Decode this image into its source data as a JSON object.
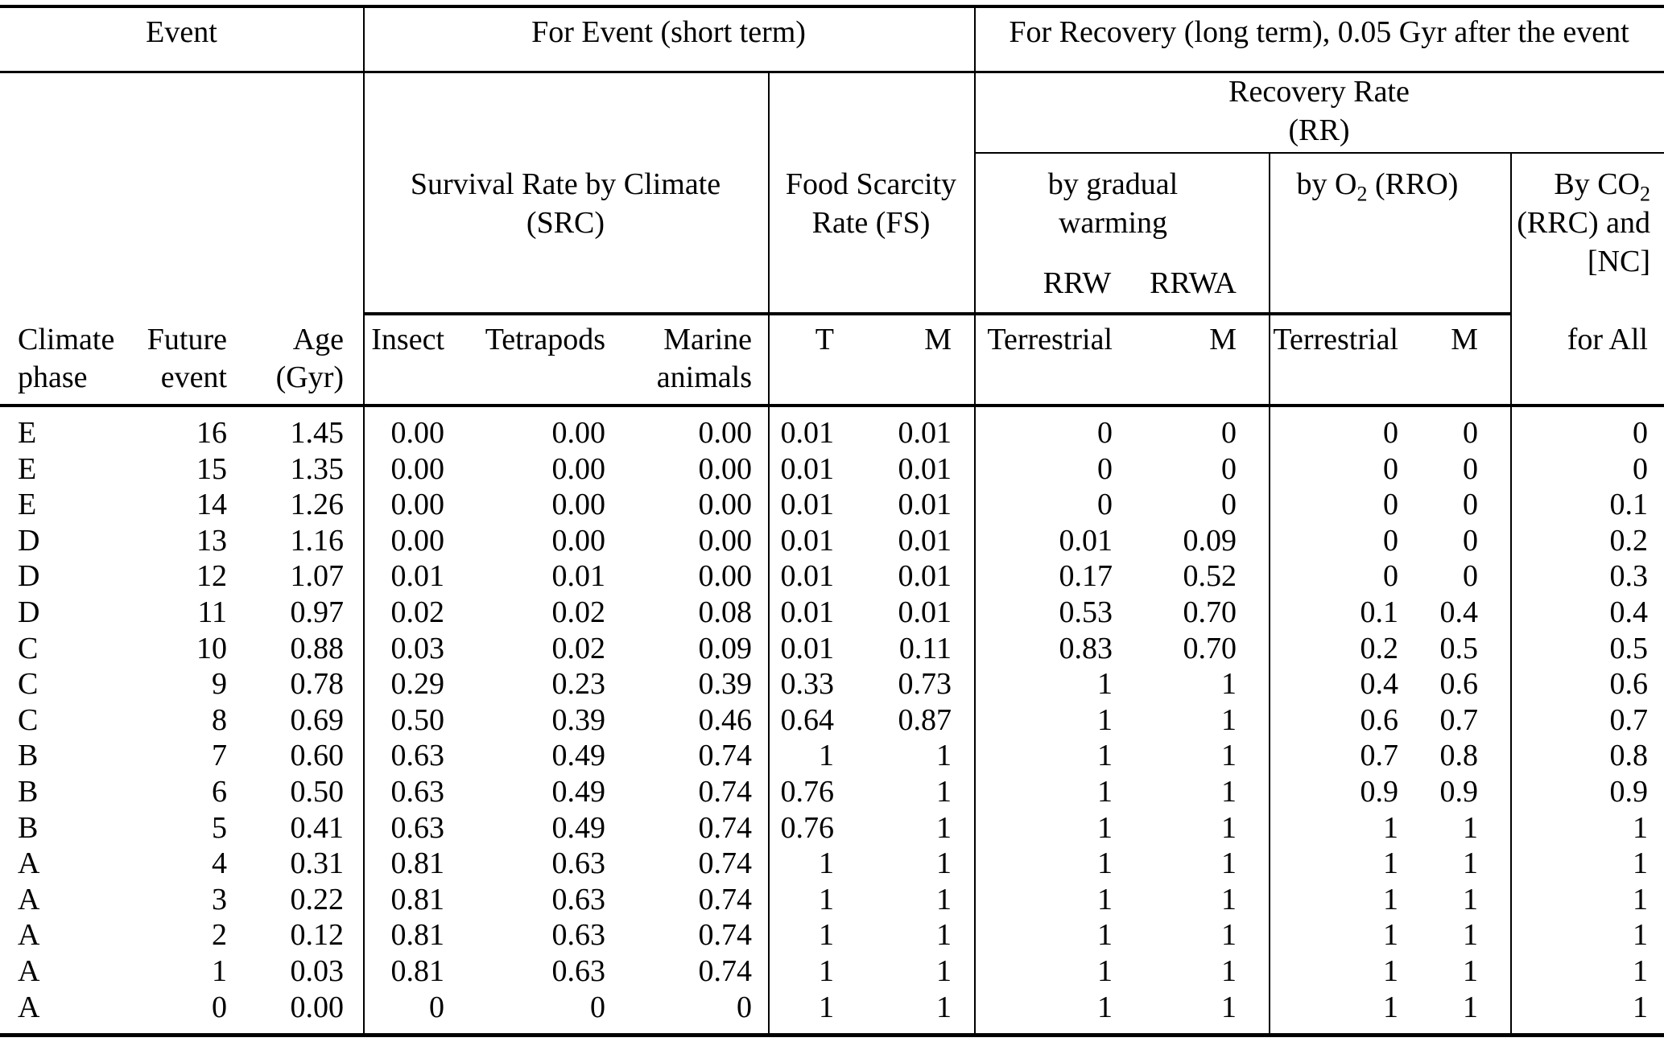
{
  "page": {
    "background": "#ffffff",
    "text_color": "#000000",
    "rule_color": "#000000"
  },
  "table": {
    "top_header": {
      "event_group": "Event",
      "for_event_group": "For Event (short term)",
      "for_recovery_group": "For Recovery (long term), 0.05 Gyr after the event"
    },
    "recovery_rate_header": {
      "line1": "Recovery Rate",
      "line2": "(RR)"
    },
    "group_headers": {
      "src_line1": "Survival Rate by Climate",
      "src_line2": "(SRC)",
      "fs_line1": "Food Scarcity",
      "fs_line2": "Rate (FS)",
      "warming_line1": "by gradual",
      "warming_line2": "warming",
      "warming_sub1": "RRW",
      "warming_sub2": "RRWA",
      "rro_pre": "by O",
      "rro_sub": "2",
      "rro_post": " (RRO)",
      "rrc_line1_pre": "By CO",
      "rrc_line1_sub": "2",
      "rrc_line2": "(RRC) and",
      "rrc_line3": "[NC]"
    },
    "columns": [
      {
        "line1": "Climate",
        "line2": "phase"
      },
      {
        "line1": "Future",
        "line2": "event"
      },
      {
        "line1": "Age",
        "line2": "(Gyr)"
      },
      {
        "line1": "Insect",
        "line2": ""
      },
      {
        "line1": "Tetrapods",
        "line2": ""
      },
      {
        "line1": "Marine",
        "line2": "animals"
      },
      {
        "line1": "T",
        "line2": ""
      },
      {
        "line1": "M",
        "line2": ""
      },
      {
        "line1": "Terrestrial",
        "line2": ""
      },
      {
        "line1": "M",
        "line2": ""
      },
      {
        "line1": "Terrestrial",
        "line2": ""
      },
      {
        "line1": "M",
        "line2": ""
      },
      {
        "line1": "for All",
        "line2": ""
      }
    ],
    "rows": [
      [
        "E",
        "16",
        "1.45",
        "0.00",
        "0.00",
        "0.00",
        "0.01",
        "0.01",
        "0",
        "0",
        "0",
        "0",
        "0"
      ],
      [
        "E",
        "15",
        "1.35",
        "0.00",
        "0.00",
        "0.00",
        "0.01",
        "0.01",
        "0",
        "0",
        "0",
        "0",
        "0"
      ],
      [
        "E",
        "14",
        "1.26",
        "0.00",
        "0.00",
        "0.00",
        "0.01",
        "0.01",
        "0",
        "0",
        "0",
        "0",
        "0.1"
      ],
      [
        "D",
        "13",
        "1.16",
        "0.00",
        "0.00",
        "0.00",
        "0.01",
        "0.01",
        "0.01",
        "0.09",
        "0",
        "0",
        "0.2"
      ],
      [
        "D",
        "12",
        "1.07",
        "0.01",
        "0.01",
        "0.00",
        "0.01",
        "0.01",
        "0.17",
        "0.52",
        "0",
        "0",
        "0.3"
      ],
      [
        "D",
        "11",
        "0.97",
        "0.02",
        "0.02",
        "0.08",
        "0.01",
        "0.01",
        "0.53",
        "0.70",
        "0.1",
        "0.4",
        "0.4"
      ],
      [
        "C",
        "10",
        "0.88",
        "0.03",
        "0.02",
        "0.09",
        "0.01",
        "0.11",
        "0.83",
        "0.70",
        "0.2",
        "0.5",
        "0.5"
      ],
      [
        "C",
        "9",
        "0.78",
        "0.29",
        "0.23",
        "0.39",
        "0.33",
        "0.73",
        "1",
        "1",
        "0.4",
        "0.6",
        "0.6"
      ],
      [
        "C",
        "8",
        "0.69",
        "0.50",
        "0.39",
        "0.46",
        "0.64",
        "0.87",
        "1",
        "1",
        "0.6",
        "0.7",
        "0.7"
      ],
      [
        "B",
        "7",
        "0.60",
        "0.63",
        "0.49",
        "0.74",
        "1",
        "1",
        "1",
        "1",
        "0.7",
        "0.8",
        "0.8"
      ],
      [
        "B",
        "6",
        "0.50",
        "0.63",
        "0.49",
        "0.74",
        "0.76",
        "1",
        "1",
        "1",
        "0.9",
        "0.9",
        "0.9"
      ],
      [
        "B",
        "5",
        "0.41",
        "0.63",
        "0.49",
        "0.74",
        "0.76",
        "1",
        "1",
        "1",
        "1",
        "1",
        "1"
      ],
      [
        "A",
        "4",
        "0.31",
        "0.81",
        "0.63",
        "0.74",
        "1",
        "1",
        "1",
        "1",
        "1",
        "1",
        "1"
      ],
      [
        "A",
        "3",
        "0.22",
        "0.81",
        "0.63",
        "0.74",
        "1",
        "1",
        "1",
        "1",
        "1",
        "1",
        "1"
      ],
      [
        "A",
        "2",
        "0.12",
        "0.81",
        "0.63",
        "0.74",
        "1",
        "1",
        "1",
        "1",
        "1",
        "1",
        "1"
      ],
      [
        "A",
        "1",
        "0.03",
        "0.81",
        "0.63",
        "0.74",
        "1",
        "1",
        "1",
        "1",
        "1",
        "1",
        "1"
      ],
      [
        "A",
        "0",
        "0.00",
        "0",
        "0",
        "0",
        "1",
        "1",
        "1",
        "1",
        "1",
        "1",
        "1"
      ]
    ]
  }
}
